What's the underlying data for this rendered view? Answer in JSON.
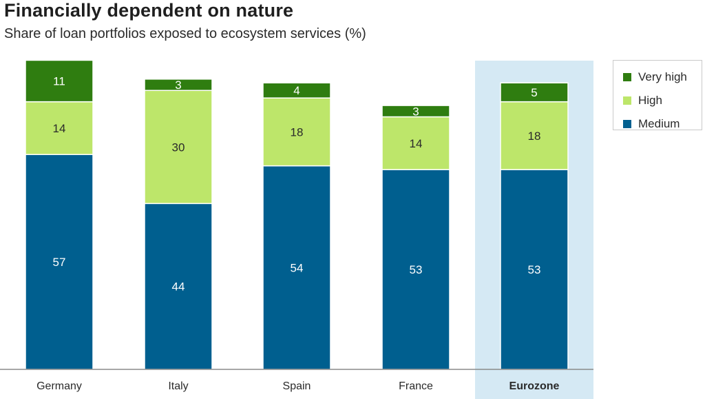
{
  "title": "Financially dependent on nature",
  "subtitle": "Share of loan portfolios exposed to ecosystem services (%)",
  "colors": {
    "Medium": "#005f8f",
    "High": "#bde66a",
    "Very high": "#2f7d10",
    "highlight": "#d5e9f4",
    "axis": "#8a8a8a"
  },
  "legend": {
    "items": [
      {
        "label": "Very high",
        "color": "#2f7d10"
      },
      {
        "label": "High",
        "color": "#bde66a"
      },
      {
        "label": "Medium",
        "color": "#005f8f"
      }
    ]
  },
  "chart_data": {
    "type": "bar",
    "stacked": true,
    "title": "Financially dependent on nature",
    "subtitle": "Share of loan portfolios exposed to ecosystem services (%)",
    "categories": [
      "Germany",
      "Italy",
      "Spain",
      "France",
      "Eurozone"
    ],
    "highlight_category": "Eurozone",
    "series": [
      {
        "name": "Medium",
        "values": [
          57,
          44,
          54,
          53,
          53
        ]
      },
      {
        "name": "High",
        "values": [
          14,
          30,
          18,
          14,
          18
        ]
      },
      {
        "name": "Very high",
        "values": [
          11,
          3,
          4,
          3,
          5
        ]
      }
    ],
    "ylim": [
      0,
      82
    ],
    "grid": false,
    "legend_position": "top-right"
  }
}
